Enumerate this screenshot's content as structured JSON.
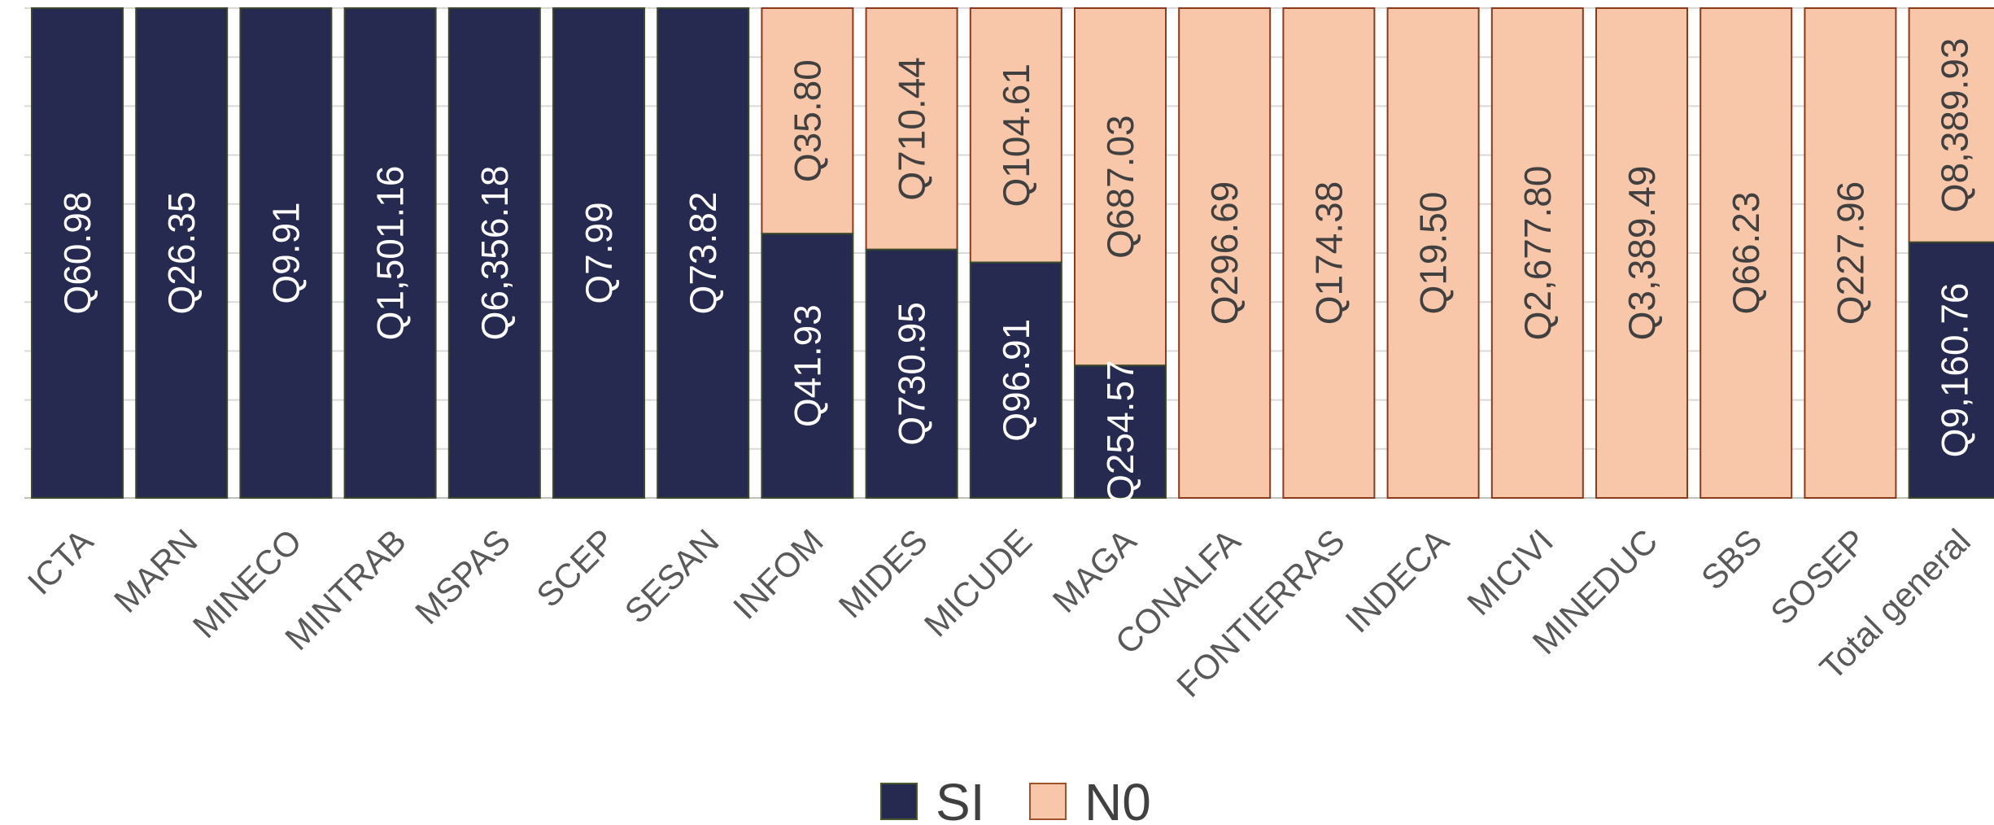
{
  "chart_data": {
    "type": "bar",
    "stacked": true,
    "normalized": true,
    "categories": [
      "ICTA",
      "MARN",
      "MINECO",
      "MINTRAB",
      "MSPAS",
      "SCEP",
      "SESAN",
      "INFOM",
      "MIDES",
      "MICUDE",
      "MAGA",
      "CONALFA",
      "FONTIERRAS",
      "INDECA",
      "MICIVI",
      "MINEDUC",
      "SBS",
      "SOSEP",
      "Total general"
    ],
    "series": [
      {
        "name": "SI",
        "color": "#262950",
        "values": [
          60.98,
          26.35,
          9.91,
          1501.16,
          6356.18,
          7.99,
          73.82,
          41.93,
          730.95,
          96.91,
          254.57,
          0,
          0,
          0,
          0,
          0,
          0,
          0,
          9160.76
        ],
        "labels": [
          "Q60.98",
          "Q26.35",
          "Q9.91",
          "Q1,501.16",
          "Q6,356.18",
          "Q7.99",
          "Q73.82",
          "Q41.93",
          "Q730.95",
          "Q96.91",
          "Q254.57",
          "",
          "",
          "",
          "",
          "",
          "",
          "",
          "Q9,160.76"
        ]
      },
      {
        "name": "N0",
        "color": "#F8C7A9",
        "values": [
          0,
          0,
          0,
          0,
          0,
          0,
          0,
          35.8,
          710.44,
          104.61,
          687.03,
          296.69,
          174.38,
          19.5,
          2677.8,
          3389.49,
          66.23,
          227.96,
          8389.93
        ],
        "labels": [
          "",
          "",
          "",
          "",
          "",
          "",
          "",
          "Q35.80",
          "Q710.44",
          "Q104.61",
          "Q687.03",
          "Q296.69",
          "Q174.38",
          "Q19.50",
          "Q2,677.80",
          "Q3,389.49",
          "Q66.23",
          "Q227.96",
          "Q8,389.93"
        ]
      }
    ],
    "legend_position": "bottom",
    "grid": true
  }
}
